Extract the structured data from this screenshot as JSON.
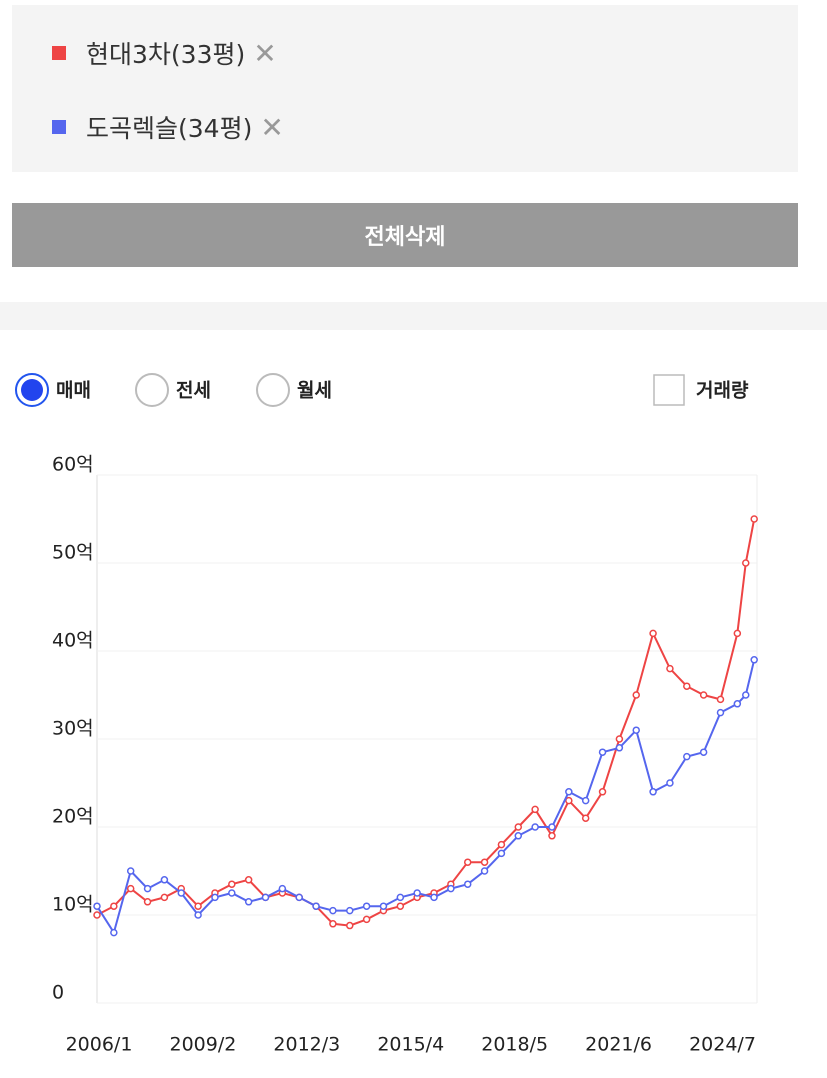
{
  "ui": {
    "delete_button": "전체삭제",
    "tabs": [
      "매매",
      "전세",
      "월세"
    ],
    "selected_tab": 0,
    "volume_checkbox": "거래량"
  },
  "chart_data": {
    "type": "line",
    "x": [
      "2006/1",
      "2006/7",
      "2007/1",
      "2007/7",
      "2008/1",
      "2008/7",
      "2009/1",
      "2009/7",
      "2010/1",
      "2010/7",
      "2011/1",
      "2011/7",
      "2012/1",
      "2012/7",
      "2013/1",
      "2013/7",
      "2014/1",
      "2014/7",
      "2015/1",
      "2015/7",
      "2016/1",
      "2016/7",
      "2017/1",
      "2017/7",
      "2018/1",
      "2018/7",
      "2019/1",
      "2019/7",
      "2020/1",
      "2020/7",
      "2021/1",
      "2021/7",
      "2022/1",
      "2022/7",
      "2023/1",
      "2023/7",
      "2024/1",
      "2024/7",
      "2025/1",
      "2025/4",
      "2025/7"
    ],
    "series": [
      {
        "name": "현대3차(33평)",
        "color": "#ee4444",
        "values": [
          10,
          11,
          13,
          11.5,
          12,
          13,
          11,
          12.5,
          13.5,
          14,
          12,
          12.5,
          12,
          11,
          9,
          8.8,
          9.5,
          10.5,
          11,
          12,
          12.5,
          13.5,
          16,
          16,
          18,
          20,
          22,
          19,
          23,
          21,
          24,
          30,
          35,
          42,
          38,
          36,
          35,
          34.5,
          42,
          50,
          55
        ]
      },
      {
        "name": "도곡렉슬(34평)",
        "color": "#5566ee",
        "values": [
          11,
          8,
          15,
          13,
          14,
          12.5,
          10,
          12,
          12.5,
          11.5,
          12,
          13,
          12,
          11,
          10.5,
          10.5,
          11,
          11,
          12,
          12.5,
          12,
          13,
          13.5,
          15,
          17,
          19,
          20,
          20,
          24,
          23,
          28.5,
          29,
          31,
          24,
          25,
          28,
          28.5,
          33,
          34,
          35,
          39
        ]
      }
    ],
    "xlim": [
      "2006/1",
      "2025/8"
    ],
    "xticks": [
      "2006/1",
      "2009/2",
      "2012/3",
      "2015/4",
      "2018/5",
      "2021/6",
      "2024/7"
    ],
    "ylim": [
      0,
      60
    ],
    "yticks": [
      0,
      {
        "value": 10,
        "label": "10억"
      },
      {
        "value": 20,
        "label": "20억"
      },
      {
        "value": 30,
        "label": "30억"
      },
      {
        "value": 40,
        "label": "40억"
      },
      {
        "value": 50,
        "label": "50억"
      },
      {
        "value": 60,
        "label": "60억"
      }
    ],
    "grid": true
  }
}
